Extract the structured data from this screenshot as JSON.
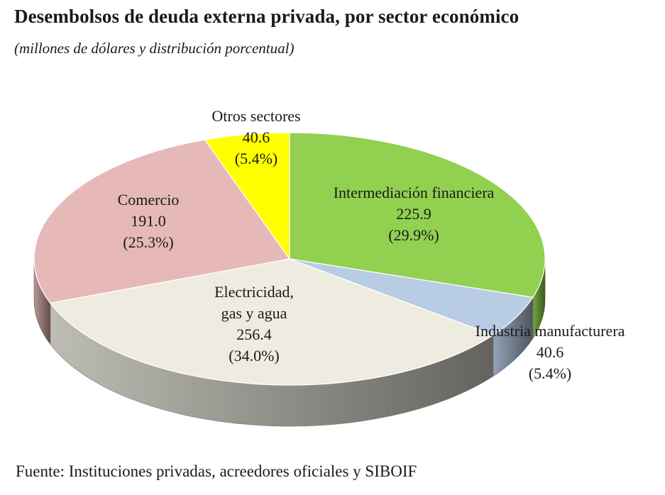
{
  "title": "Desembolsos de deuda externa privada, por sector económico",
  "subtitle": "(millones de dólares y distribución porcentual)",
  "source": "Fuente: Instituciones privadas, acreedores oficiales y SIBOIF",
  "chart_data": {
    "type": "pie",
    "style": "3d",
    "slices": [
      {
        "name": "Intermediación financiera",
        "value": 225.9,
        "percent": "29.9%",
        "color": "#92d050",
        "lines": [
          "Intermediación financiera"
        ]
      },
      {
        "name": "Industria manufacturera",
        "value": 40.6,
        "percent": "5.4%",
        "color": "#b8cce4",
        "lines": [
          "Industria manufacturera"
        ]
      },
      {
        "name": "Electricidad, gas y agua",
        "value": 256.4,
        "percent": "34.0%",
        "color": "#eeece1",
        "lines": [
          "Electricidad,",
          "gas y agua"
        ]
      },
      {
        "name": "Comercio",
        "value": 191.0,
        "percent": "25.3%",
        "color": "#e6b9b8",
        "lines": [
          "Comercio"
        ]
      },
      {
        "name": "Otros sectores",
        "value": 40.6,
        "percent": "5.4%",
        "color": "#ffff00",
        "lines": [
          "Otros sectores"
        ]
      }
    ],
    "value_labels": [
      "225.9",
      "40.6",
      "256.4",
      "191.0",
      "40.6"
    ],
    "percent_labels": [
      "(29.9%)",
      "(5.4%)",
      "(34.0%)",
      "(25.3%)",
      "(5.4%)"
    ]
  }
}
